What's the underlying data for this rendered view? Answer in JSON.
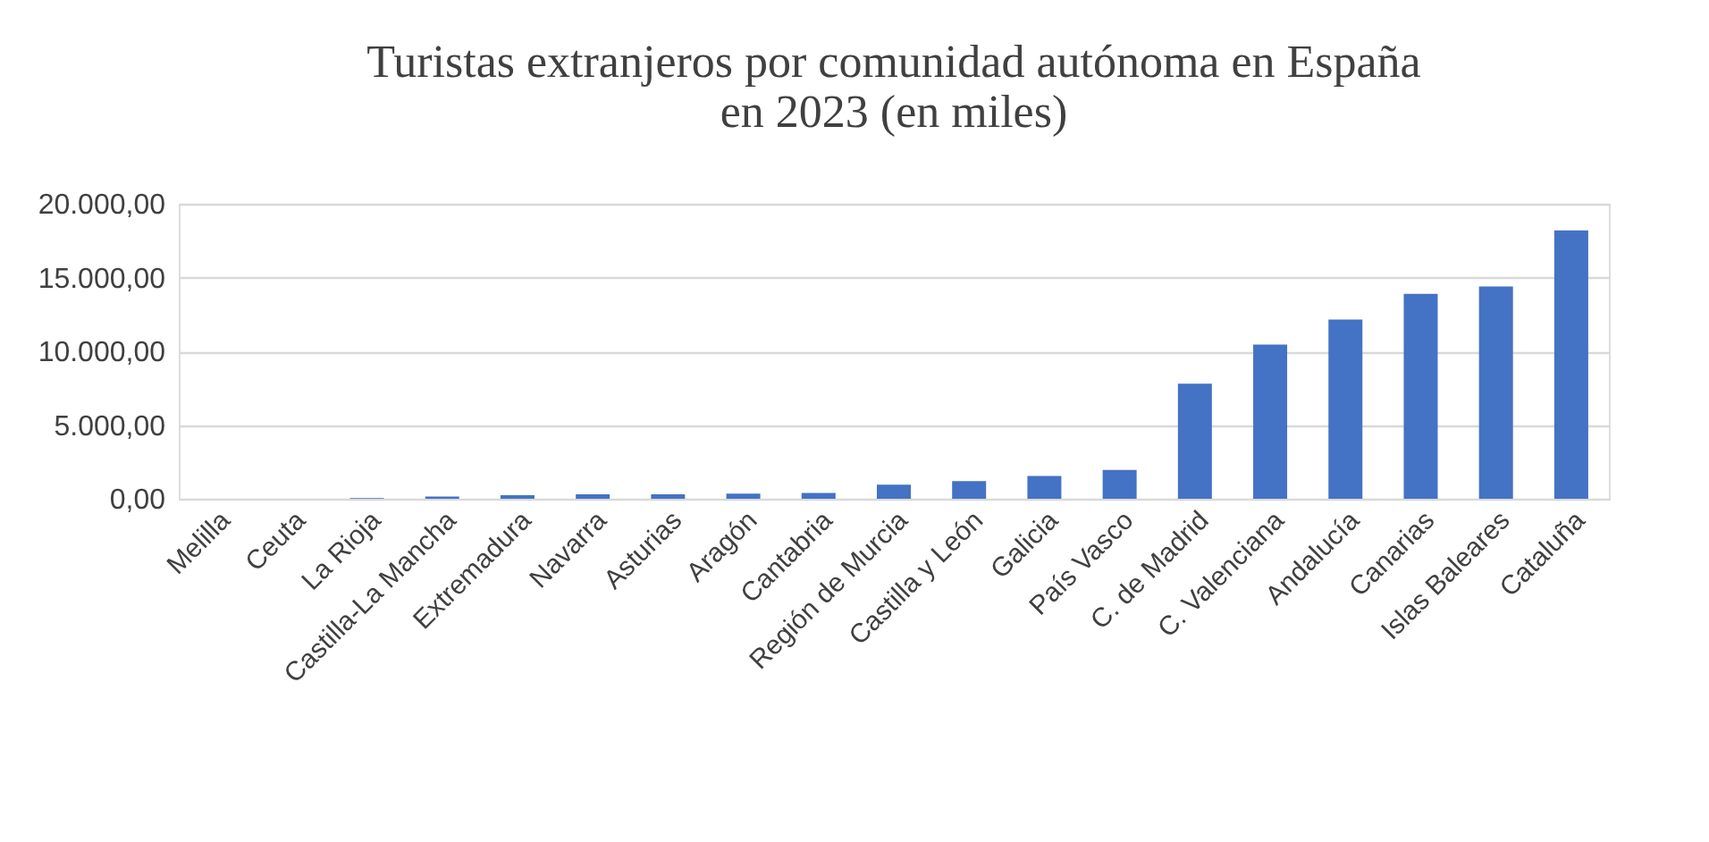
{
  "chart_data": {
    "type": "bar",
    "title": "Turistas extranjeros por comunidad autónoma en España\nen 2023 (en miles)",
    "categories": [
      "Melilla",
      "Ceuta",
      "La Rioja",
      "Castilla-La Mancha",
      "Extremadura",
      "Navarra",
      "Asturias",
      "Aragón",
      "Cantabria",
      "Región de Murcia",
      "Castilla y León",
      "Galicia",
      "País Vasco",
      "C. de Madrid",
      "C. Valenciana",
      "Andalucía",
      "Canarias",
      "Islas Baleares",
      "Cataluña"
    ],
    "values": [
      0,
      0,
      50,
      150,
      250,
      300,
      300,
      350,
      400,
      950,
      1200,
      1550,
      1950,
      7800,
      10450,
      12150,
      13900,
      14400,
      18200
    ],
    "color": "#4472c4",
    "ylim": [
      0,
      20000
    ],
    "yticks": [
      {
        "value": 0,
        "label": "0,00"
      },
      {
        "value": 5000,
        "label": "5.000,00"
      },
      {
        "value": 10000,
        "label": "10.000,00"
      },
      {
        "value": 15000,
        "label": "15.000,00"
      },
      {
        "value": 20000,
        "label": "20.000,00"
      }
    ],
    "grid": "y"
  }
}
